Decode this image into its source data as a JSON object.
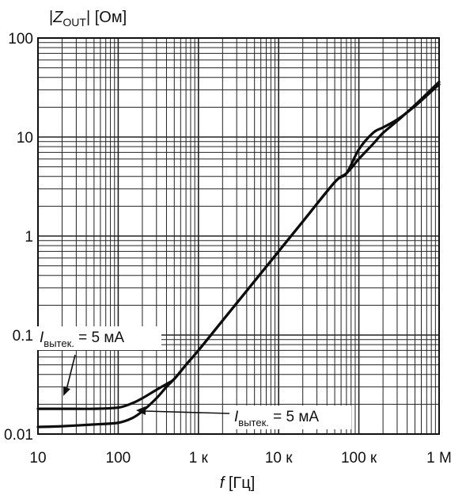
{
  "chart_data": {
    "type": "line",
    "ylabel": {
      "prefix": "|",
      "symbol": "Z",
      "subscript": "OUT",
      "suffix": "| [Ом]"
    },
    "xlabel": {
      "symbol": "f",
      "unit": " [Гц]"
    },
    "x_scale": "log",
    "y_scale": "log",
    "xlim": [
      10,
      1000000
    ],
    "ylim": [
      0.01,
      100
    ],
    "grid": true,
    "x_ticks": [
      {
        "value": 10,
        "label": "10"
      },
      {
        "value": 100,
        "label": "100"
      },
      {
        "value": 1000,
        "label": "1 к"
      },
      {
        "value": 10000,
        "label": "10 к"
      },
      {
        "value": 100000,
        "label": "100 к"
      },
      {
        "value": 1000000,
        "label": "1 М"
      }
    ],
    "y_ticks": [
      {
        "value": 100,
        "label": "100"
      },
      {
        "value": 10,
        "label": "10"
      },
      {
        "value": 1,
        "label": "1"
      },
      {
        "value": 0.1,
        "label": "0.1"
      },
      {
        "value": 0.01,
        "label": "0.01"
      }
    ],
    "series": [
      {
        "x": [
          10,
          20,
          50,
          100,
          150,
          200,
          300,
          400,
          500,
          700,
          1000,
          2000,
          5000,
          10000,
          20000,
          50000,
          70000,
          100000,
          150000,
          200000,
          300000,
          500000,
          1000000
        ],
        "y": [
          0.018,
          0.018,
          0.018,
          0.0185,
          0.0205,
          0.023,
          0.028,
          0.032,
          0.036,
          0.05,
          0.07,
          0.14,
          0.35,
          0.7,
          1.4,
          3.5,
          4.3,
          7.5,
          11,
          12.5,
          15,
          20.5,
          34
        ]
      },
      {
        "x": [
          10,
          20,
          50,
          100,
          150,
          200,
          300,
          400,
          500,
          700,
          1000,
          2000,
          5000,
          10000,
          20000,
          50000,
          70000,
          100000,
          150000,
          200000,
          300000,
          500000,
          1000000
        ],
        "y": [
          0.0118,
          0.012,
          0.0125,
          0.013,
          0.0145,
          0.017,
          0.023,
          0.03,
          0.036,
          0.05,
          0.07,
          0.14,
          0.35,
          0.7,
          1.4,
          3.5,
          4.3,
          6,
          8.5,
          11,
          14.5,
          21,
          36
        ]
      }
    ],
    "annotations": [
      {
        "symbol": "I",
        "subscript": "вытек.",
        "text": " = 5 мА"
      },
      {
        "symbol": "I",
        "subscript": "вытек.",
        "text": " = 5 мА"
      }
    ]
  }
}
